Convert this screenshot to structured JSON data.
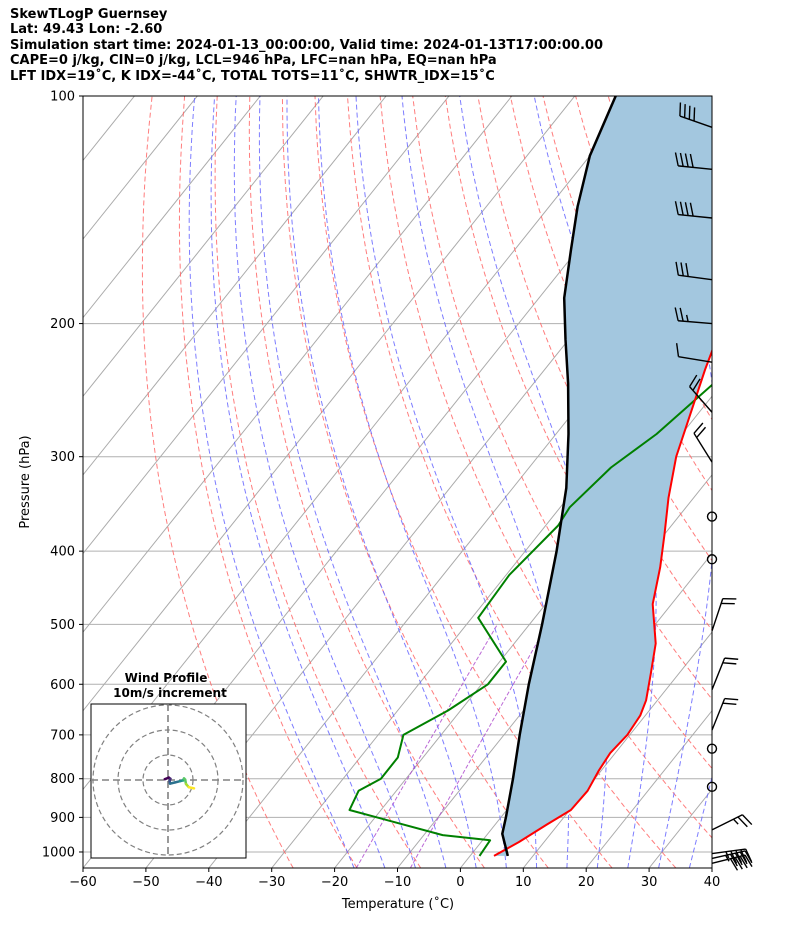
{
  "header": {
    "line1": "SkewTLogP Guernsey",
    "line2": "Lat: 49.43   Lon: -2.60",
    "line3": "Simulation start time: 2024-01-13_00:00:00, Valid time: 2024-01-13T17:00:00.00",
    "line4": "CAPE=0 j/kg, CIN=0 j/kg, LCL=946 hPa, LFC=nan hPa, EQ=nan hPa",
    "line5": "LFT IDX=19˚C, K IDX=-44˚C, TOTAL TOTS=11˚C, SHWTR_IDX=15˚C"
  },
  "chart_data": [
    {
      "type": "line",
      "title": "SkewTLogP Guernsey",
      "xlabel": "Temperature (˚C)",
      "ylabel": "Pressure (hPa)",
      "xlim": [
        -60,
        40
      ],
      "ylim": [
        1050,
        100
      ],
      "y_scale": "log",
      "x_ticks": [
        "−60",
        "−50",
        "−40",
        "−30",
        "−20",
        "−10",
        "0",
        "10",
        "20",
        "30",
        "40"
      ],
      "y_ticks": [
        "100",
        "200",
        "300",
        "400",
        "500",
        "600",
        "700",
        "800",
        "900",
        "1000"
      ],
      "grid": true,
      "colors": {
        "temperature": "#ff0000",
        "dewpoint": "#008000",
        "parcel": "#000000",
        "shade": "#a3c7df",
        "dry_adiabat": "#ff6666",
        "moist_adiabat": "#6666ff",
        "mixing_ratio": "#aa44cc",
        "isotherm": "#aaaaaa",
        "barb": "#000000"
      },
      "series": [
        {
          "key": "temperature",
          "x": [
            3.8,
            6,
            8.2,
            10.2,
            10.4,
            9.6,
            9.2,
            9.6,
            9.2,
            8.2,
            5.5,
            2.5,
            -3,
            -6.5,
            -10,
            -14,
            -18,
            -21.5,
            -24.5,
            -26.5,
            -28,
            -28,
            -27,
            -25.5,
            -24,
            -20.5,
            -13,
            -11
          ],
          "y": [
            1012,
            970,
            920,
            880,
            830,
            780,
            740,
            700,
            660,
            630,
            580,
            530,
            470,
            420,
            380,
            340,
            300,
            260,
            230,
            210,
            195,
            185,
            170,
            150,
            135,
            120,
            105,
            100
          ]
        },
        {
          "key": "dewpoint",
          "x": [
            1.5,
            1.2,
            -7,
            -25,
            -26,
            -24,
            -24,
            -26,
            -22,
            -19,
            -19,
            -29,
            -29.5,
            -28,
            -28.5,
            -27,
            -24,
            -21,
            -20,
            -20,
            -20,
            -19,
            -17.5,
            -15,
            -10,
            -9.5
          ],
          "y": [
            1012,
            965,
            950,
            880,
            830,
            800,
            750,
            700,
            650,
            600,
            560,
            490,
            430,
            370,
            350,
            310,
            280,
            235,
            210,
            180,
            160,
            150,
            135,
            120,
            103,
            100
          ]
        },
        {
          "key": "parcel",
          "x": [
            6,
            2.3,
            0.8,
            -3,
            -7.5,
            -12.5,
            -18,
            -25,
            -31.5,
            -38,
            -44.5,
            -50.5,
            -56,
            -61,
            -65.5,
            -70,
            -73.5
          ],
          "y": [
            1012,
            946,
            900,
            800,
            700,
            600,
            500,
            400,
            330,
            280,
            240,
            210,
            185,
            160,
            140,
            120,
            100
          ]
        }
      ],
      "wind_barbs": [
        {
          "p": 1035,
          "u": 20,
          "v": 5
        },
        {
          "p": 1020,
          "u": 22,
          "v": 5
        },
        {
          "p": 1005,
          "u": 22,
          "v": 3
        },
        {
          "p": 935,
          "u": 12,
          "v": 6
        },
        {
          "p": 820,
          "u": 0,
          "v": 0
        },
        {
          "p": 730,
          "u": 0,
          "v": 0
        },
        {
          "p": 690,
          "u": 4,
          "v": 10
        },
        {
          "p": 610,
          "u": 4,
          "v": 10
        },
        {
          "p": 510,
          "u": 3,
          "v": 9
        },
        {
          "p": 410,
          "u": 0,
          "v": 0
        },
        {
          "p": 360,
          "u": 0,
          "v": 0
        },
        {
          "p": 305,
          "u": -5,
          "v": 8
        },
        {
          "p": 262,
          "u": -7,
          "v": 8
        },
        {
          "p": 225,
          "u": -6,
          "v": 1
        },
        {
          "p": 200,
          "u": -12,
          "v": 1
        },
        {
          "p": 175,
          "u": -15,
          "v": 2
        },
        {
          "p": 145,
          "u": -20,
          "v": 2
        },
        {
          "p": 125,
          "u": -20,
          "v": 2
        },
        {
          "p": 110,
          "u": -20,
          "v": 7
        }
      ]
    },
    {
      "type": "line",
      "title": "Wind Profile",
      "subtitle": "10m/s increment",
      "rings_ms": [
        10,
        20,
        30
      ],
      "colormap": "viridis",
      "hodograph": [
        {
          "u": -0.8,
          "v": 0.2
        },
        {
          "u": 0.2,
          "v": 0.6
        },
        {
          "u": 0.6,
          "v": 0.3
        },
        {
          "u": 0.4,
          "v": -0.3
        },
        {
          "u": 0.5,
          "v": -0.9
        },
        {
          "u": 1.8,
          "v": -0.6
        },
        {
          "u": 3.0,
          "v": -0.3
        },
        {
          "u": 3.8,
          "v": -0.1
        },
        {
          "u": 4.0,
          "v": 0.4
        },
        {
          "u": 4.3,
          "v": 0.1
        },
        {
          "u": 4.5,
          "v": -1.0
        },
        {
          "u": 5.2,
          "v": -1.8
        },
        {
          "u": 6.5,
          "v": -2.1
        }
      ]
    }
  ]
}
